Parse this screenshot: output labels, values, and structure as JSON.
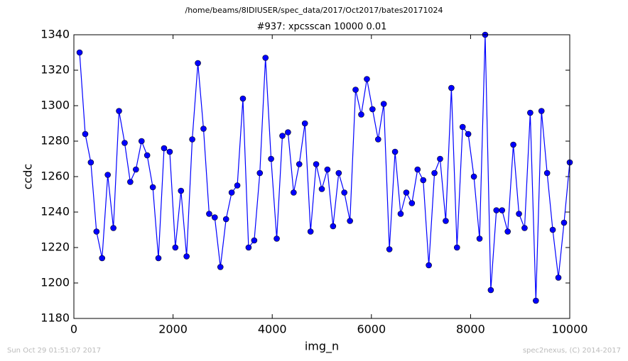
{
  "chart_data": {
    "type": "line",
    "suptitle": "/home/beams/8IDIUSER/spec_data/2017/Oct2017/bates20171024",
    "title": "#937: xpcsscan 10000 0.01",
    "x_label": "img_n",
    "y_label": "ccdc",
    "footer_left": "Sun Oct 29 01:51:07 2017",
    "footer_right": "spec2nexus, (C) 2014-2017",
    "color": "#0000ff",
    "x": [
      115,
      229,
      342,
      456,
      569,
      683,
      797,
      910,
      1024,
      1137,
      1251,
      1365,
      1478,
      1592,
      1705,
      1819,
      1933,
      2046,
      2160,
      2273,
      2387,
      2501,
      2614,
      2728,
      2841,
      2955,
      3069,
      3182,
      3296,
      3409,
      3523,
      3637,
      3750,
      3864,
      3977,
      4091,
      4205,
      4318,
      4432,
      4545,
      4659,
      4773,
      4886,
      5000,
      5113,
      5227,
      5341,
      5454,
      5568,
      5681,
      5795,
      5909,
      6022,
      6136,
      6249,
      6363,
      6477,
      6590,
      6704,
      6817,
      6931,
      7045,
      7158,
      7272,
      7385,
      7499,
      7613,
      7726,
      7840,
      7953,
      8067,
      8181,
      8294,
      8408,
      8521,
      8635,
      8749,
      8862,
      8976,
      9089,
      9203,
      9317,
      9430,
      9544,
      9657,
      9771,
      9885,
      10000
    ],
    "values": [
      1330,
      1284,
      1268,
      1229,
      1214,
      1261,
      1231,
      1297,
      1279,
      1257,
      1264,
      1280,
      1272,
      1254,
      1214,
      1276,
      1274,
      1220,
      1252,
      1215,
      1281,
      1324,
      1287,
      1239,
      1237,
      1209,
      1236,
      1251,
      1255,
      1304,
      1220,
      1224,
      1262,
      1327,
      1270,
      1225,
      1283,
      1285,
      1251,
      1267,
      1290,
      1229,
      1267,
      1253,
      1264,
      1232,
      1262,
      1251,
      1235,
      1309,
      1295,
      1315,
      1298,
      1281,
      1301,
      1219,
      1274,
      1239,
      1251,
      1245,
      1264,
      1258,
      1210,
      1262,
      1270,
      1235,
      1310,
      1220,
      1288,
      1284,
      1260,
      1225,
      1340,
      1196,
      1241,
      1241,
      1229,
      1278,
      1239,
      1231,
      1296,
      1190,
      1297,
      1262,
      1230,
      1203,
      1234,
      1268
    ],
    "xlim": [
      0,
      10000
    ],
    "xticks": [
      0,
      2000,
      4000,
      6000,
      8000,
      10000
    ],
    "ylim": [
      1180,
      1340
    ],
    "yticks": [
      1180,
      1200,
      1220,
      1240,
      1260,
      1280,
      1300,
      1320,
      1340
    ]
  }
}
